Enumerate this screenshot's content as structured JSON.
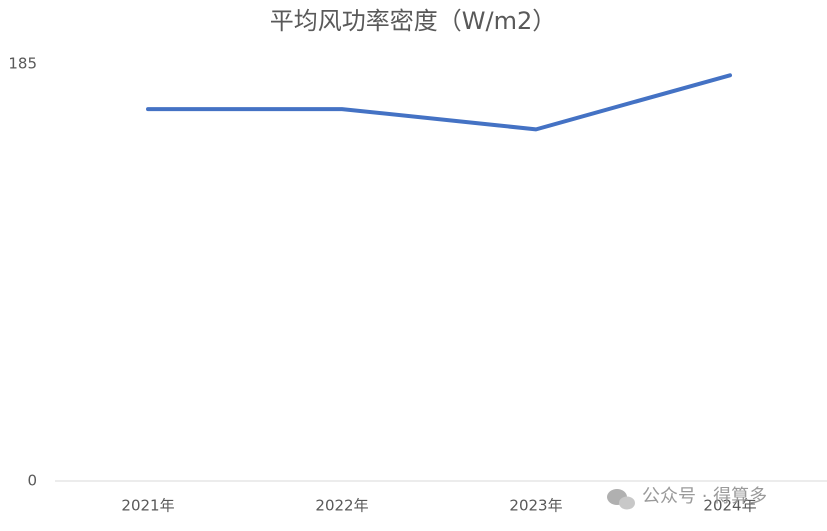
{
  "chart_data": {
    "type": "line",
    "title": "平均风功率密度（W/m2）",
    "categories": [
      "2021年",
      "2022年",
      "2023年",
      "2024年"
    ],
    "values": [
      165,
      165,
      156,
      180
    ],
    "color": "#4472c4",
    "ylim": [
      0,
      185
    ],
    "yticks": [
      0,
      185
    ],
    "grid": false
  },
  "watermark": "公众号 · 得算多"
}
